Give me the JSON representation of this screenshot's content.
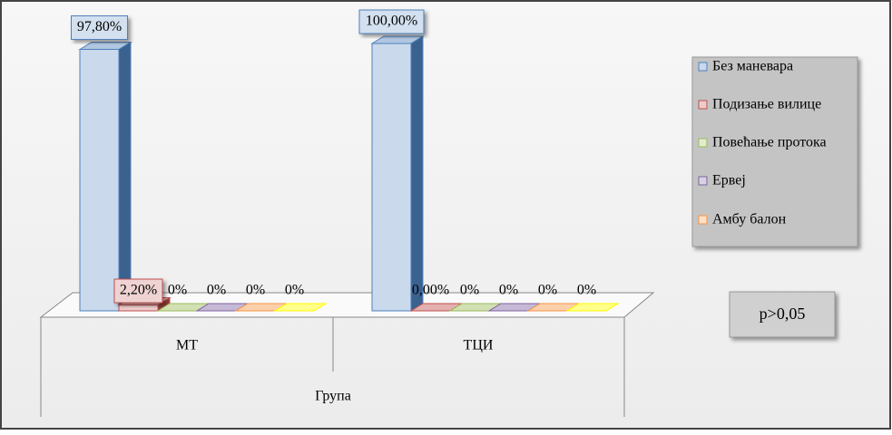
{
  "chart_data": {
    "type": "bar3d",
    "categories": [
      "МТ",
      "ТЦИ"
    ],
    "series": [
      {
        "name": "Без маневара",
        "color": "#4f81bd",
        "values": [
          97.8,
          100
        ],
        "value_labels": [
          "97,80%",
          "100,00%"
        ]
      },
      {
        "name": "Подизање вилице",
        "color": "#c0504d",
        "values": [
          2.2,
          0
        ],
        "value_labels": [
          "2,20%",
          "0,00%"
        ]
      },
      {
        "name": "Повећање протока",
        "color": "#9bbb59",
        "values": [
          0,
          0
        ],
        "value_labels": [
          "0%",
          "0%"
        ]
      },
      {
        "name": "Ервеј",
        "color": "#8064a2",
        "values": [
          0,
          0
        ],
        "value_labels": [
          "0%",
          "0%"
        ]
      },
      {
        "name": "Амбу балон",
        "color": "#f79646",
        "values": [
          0,
          0
        ],
        "value_labels": [
          "0%",
          "0%"
        ]
      },
      {
        "name": null,
        "color": "#ffff00",
        "values": [
          0,
          0
        ],
        "value_labels": [
          "0%",
          "0%"
        ]
      }
    ],
    "x_label": "Група",
    "annotation": "p>0,05",
    "legend": "right"
  }
}
